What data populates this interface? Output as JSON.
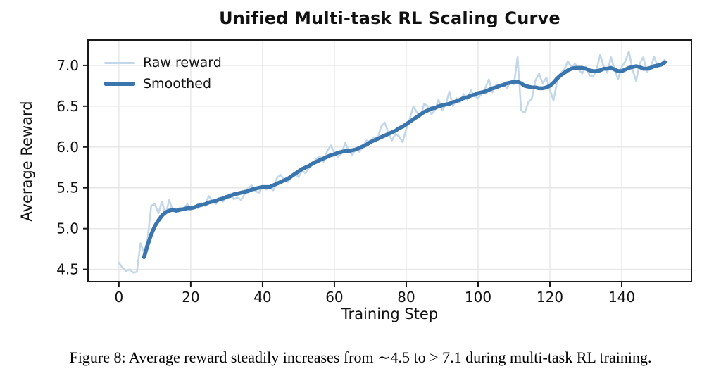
{
  "title": "Unified Multi-task RL Scaling Curve",
  "caption": "Figure 8: Average reward steadily increases from ∼4.5 to > 7.1 during multi-task RL training.",
  "legend": {
    "items": [
      {
        "label": "Raw reward",
        "color": "#c3d7ea"
      },
      {
        "label": "Smoothed",
        "color": "#3b75ad"
      }
    ]
  },
  "colors": {
    "raw_line": "#c3d7ea",
    "smoothed_line": "#3b75ad",
    "grid": "#e6e6e6",
    "spine": "#1a1a1a",
    "text": "#111111"
  },
  "chart_data": {
    "type": "line",
    "title": "Unified Multi-task RL Scaling Curve",
    "xlabel": "Training Step",
    "ylabel": "Average Reward",
    "xlim": [
      -8.6,
      159.4
    ],
    "ylim": [
      4.35,
      7.31
    ],
    "xticks": [
      0,
      20,
      40,
      60,
      80,
      100,
      120,
      140
    ],
    "yticks": [
      "4.5",
      "5.0",
      "5.5",
      "6.0",
      "6.5",
      "7.0"
    ],
    "grid": true,
    "legend_position": "upper left",
    "x_is_index": true,
    "series": [
      {
        "name": "Raw reward",
        "values": [
          4.58,
          4.52,
          4.48,
          4.5,
          4.46,
          4.47,
          4.82,
          4.7,
          4.88,
          5.28,
          5.3,
          5.19,
          5.33,
          5.17,
          5.35,
          5.22,
          5.2,
          5.26,
          5.24,
          5.3,
          5.24,
          5.27,
          5.25,
          5.31,
          5.28,
          5.4,
          5.34,
          5.3,
          5.36,
          5.33,
          5.38,
          5.43,
          5.36,
          5.38,
          5.35,
          5.42,
          5.5,
          5.53,
          5.46,
          5.44,
          5.52,
          5.48,
          5.5,
          5.47,
          5.62,
          5.66,
          5.6,
          5.57,
          5.62,
          5.67,
          5.63,
          5.71,
          5.68,
          5.75,
          5.8,
          5.86,
          5.88,
          5.82,
          5.95,
          6.02,
          5.93,
          5.88,
          5.92,
          6.05,
          5.96,
          5.9,
          5.98,
          5.94,
          6.02,
          6.08,
          6.05,
          6.12,
          6.1,
          6.25,
          6.3,
          6.18,
          6.08,
          6.16,
          6.13,
          6.06,
          6.22,
          6.35,
          6.5,
          6.42,
          6.38,
          6.53,
          6.5,
          6.4,
          6.45,
          6.58,
          6.45,
          6.52,
          6.68,
          6.5,
          6.6,
          6.55,
          6.65,
          6.58,
          6.7,
          6.62,
          6.6,
          6.65,
          6.72,
          6.83,
          6.67,
          6.76,
          6.73,
          6.78,
          6.72,
          6.8,
          6.77,
          7.1,
          6.45,
          6.42,
          6.55,
          6.6,
          6.82,
          6.9,
          6.78,
          6.85,
          6.7,
          6.57,
          6.8,
          6.9,
          6.95,
          7.05,
          6.98,
          7.02,
          6.95,
          6.9,
          6.98,
          6.88,
          6.86,
          6.95,
          7.13,
          6.98,
          6.91,
          7.1,
          6.95,
          6.83,
          6.98,
          7.05,
          7.17,
          6.95,
          6.81,
          7.02,
          7.1,
          6.92,
          6.96,
          7.11,
          6.99,
          7.02,
          7.07
        ]
      },
      {
        "name": "Smoothed",
        "values": [
          null,
          null,
          null,
          null,
          null,
          null,
          null,
          4.65,
          4.8,
          4.93,
          5.03,
          5.1,
          5.16,
          5.2,
          5.22,
          5.23,
          5.22,
          5.23,
          5.24,
          5.25,
          5.25,
          5.26,
          5.28,
          5.29,
          5.3,
          5.32,
          5.33,
          5.34,
          5.36,
          5.37,
          5.39,
          5.4,
          5.42,
          5.43,
          5.44,
          5.45,
          5.46,
          5.48,
          5.49,
          5.5,
          5.51,
          5.51,
          5.51,
          5.53,
          5.55,
          5.57,
          5.59,
          5.61,
          5.64,
          5.67,
          5.7,
          5.73,
          5.75,
          5.77,
          5.8,
          5.82,
          5.84,
          5.86,
          5.88,
          5.9,
          5.91,
          5.93,
          5.94,
          5.95,
          5.95,
          5.96,
          5.97,
          5.99,
          6.01,
          6.03,
          6.06,
          6.08,
          6.1,
          6.12,
          6.14,
          6.16,
          6.18,
          6.2,
          6.23,
          6.25,
          6.28,
          6.31,
          6.34,
          6.37,
          6.4,
          6.43,
          6.45,
          6.47,
          6.48,
          6.5,
          6.51,
          6.52,
          6.53,
          6.55,
          6.56,
          6.58,
          6.6,
          6.61,
          6.63,
          6.64,
          6.66,
          6.67,
          6.68,
          6.7,
          6.72,
          6.73,
          6.75,
          6.76,
          6.78,
          6.79,
          6.8,
          6.8,
          6.78,
          6.75,
          6.74,
          6.73,
          6.73,
          6.72,
          6.72,
          6.73,
          6.75,
          6.79,
          6.84,
          6.88,
          6.91,
          6.94,
          6.96,
          6.97,
          6.97,
          6.97,
          6.96,
          6.94,
          6.93,
          6.93,
          6.94,
          6.96,
          6.96,
          6.97,
          6.95,
          6.93,
          6.93,
          6.95,
          6.97,
          6.98,
          6.99,
          6.98,
          6.96,
          6.96,
          6.97,
          6.99,
          7.0,
          7.01,
          7.04
        ]
      }
    ]
  }
}
